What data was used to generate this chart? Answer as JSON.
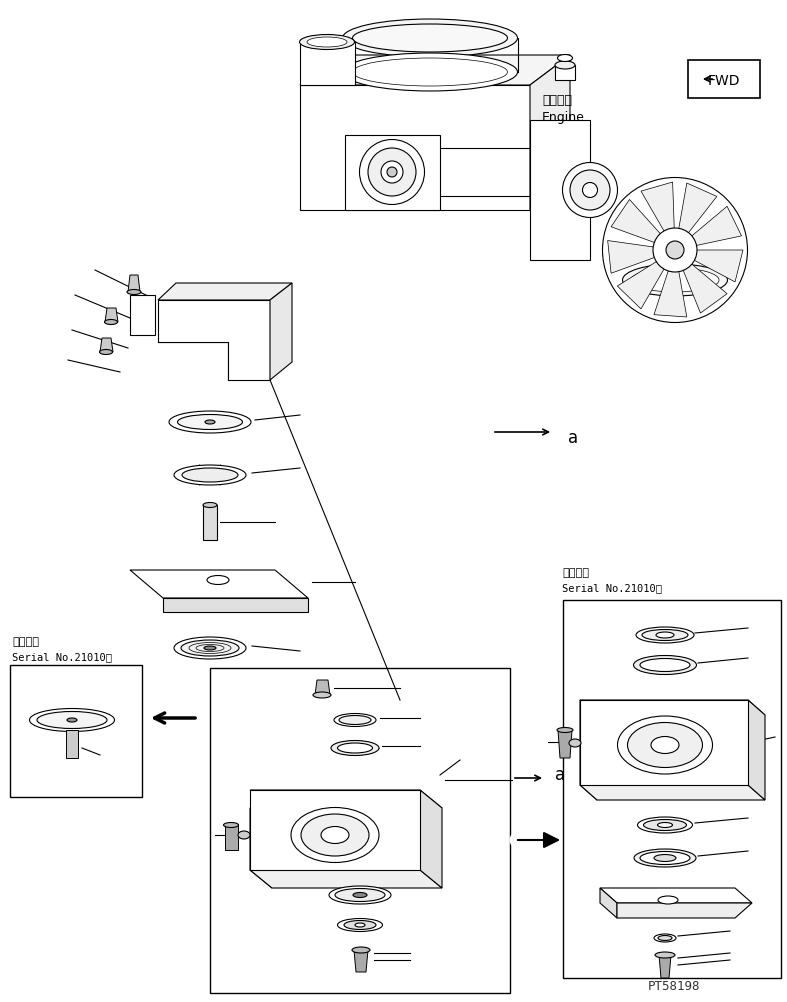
{
  "bg_color": "#ffffff",
  "line_color": "#000000",
  "fig_width": 7.87,
  "fig_height": 10.02,
  "label_top_right_line1": "エンジン",
  "label_top_right_line2": "Engine",
  "fwd_label": "FWD",
  "serial_label_left_line1": "適用号機",
  "serial_label_left_line2": "Serial No.21010～",
  "serial_label_right_line1": "適用号機",
  "serial_label_right_line2": "Serial No.21010～",
  "annotation_a": "a",
  "pt_number": "PT58198"
}
